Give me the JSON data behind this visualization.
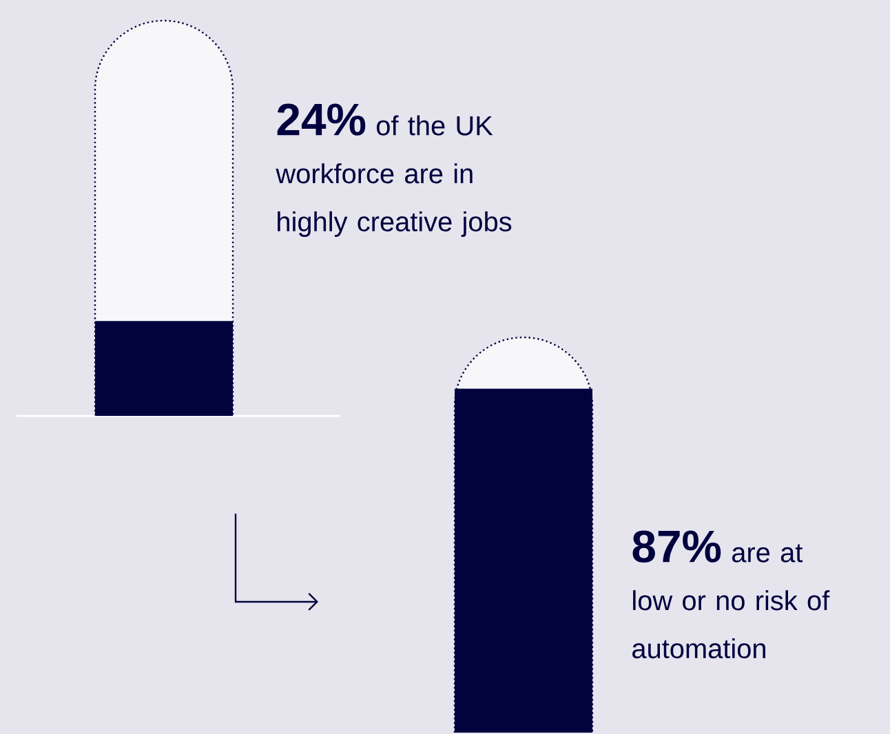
{
  "chart_data": {
    "type": "other",
    "categories": [
      null,
      null
    ],
    "values": [
      24,
      87
    ],
    "value_labels": [
      "24%",
      "87%"
    ],
    "annotations": [
      "of the UK workforce are in highly creative jobs",
      "are at low or no risk of automation"
    ],
    "color": "#02023f"
  }
}
